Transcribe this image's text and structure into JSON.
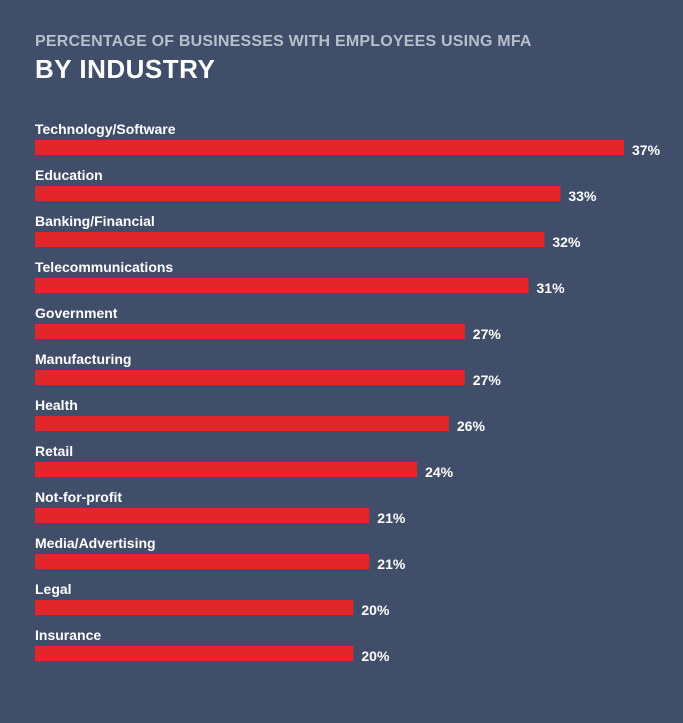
{
  "header": {
    "subtitle": "PERCENTAGE OF BUSINESSES WITH EMPLOYEES USING MFA",
    "title": "BY INDUSTRY"
  },
  "colors": {
    "background": "#414e6a",
    "bar": "#e3262a",
    "text": "#ffffff",
    "subtitle": "#b8bfcc"
  },
  "chart_data": {
    "type": "bar",
    "orientation": "horizontal",
    "title": "BY INDUSTRY",
    "subtitle": "PERCENTAGE OF BUSINESSES WITH EMPLOYEES USING MFA",
    "xlabel": "",
    "ylabel": "",
    "grid": false,
    "value_suffix": "%",
    "categories": [
      "Technology/Software",
      "Education",
      "Banking/Financial",
      "Telecommunications",
      "Government",
      "Manufacturing",
      "Health",
      "Retail",
      "Not-for-profit",
      "Media/Advertising",
      "Legal",
      "Insurance"
    ],
    "values": [
      37,
      33,
      32,
      31,
      27,
      27,
      26,
      24,
      21,
      21,
      20,
      20
    ],
    "value_labels": [
      "37%",
      "33%",
      "32%",
      "31%",
      "27%",
      "27%",
      "26%",
      "24%",
      "21%",
      "21%",
      "20%",
      "20%"
    ]
  }
}
